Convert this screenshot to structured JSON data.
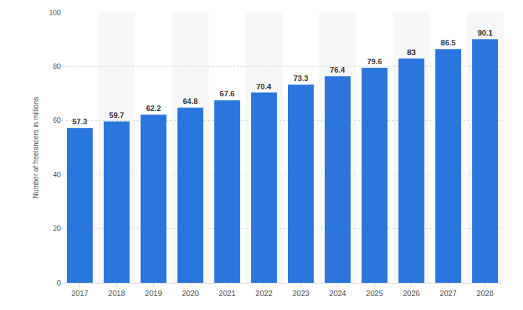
{
  "chart_data": {
    "type": "bar",
    "y_label": "Number of freelancers in millions",
    "categories": [
      "2017",
      "2018",
      "2019",
      "2020",
      "2021",
      "2022",
      "2023",
      "2024",
      "2025",
      "2026",
      "2027",
      "2028"
    ],
    "values": [
      57.3,
      59.7,
      62.2,
      64.8,
      67.6,
      70.4,
      73.3,
      76.4,
      79.6,
      83,
      86.5,
      90.1
    ],
    "color": "#2a76dd",
    "ylim": [
      0,
      100
    ],
    "yticks": [
      0,
      20,
      40,
      60,
      80,
      100
    ],
    "grid": true,
    "data_labels": true
  }
}
